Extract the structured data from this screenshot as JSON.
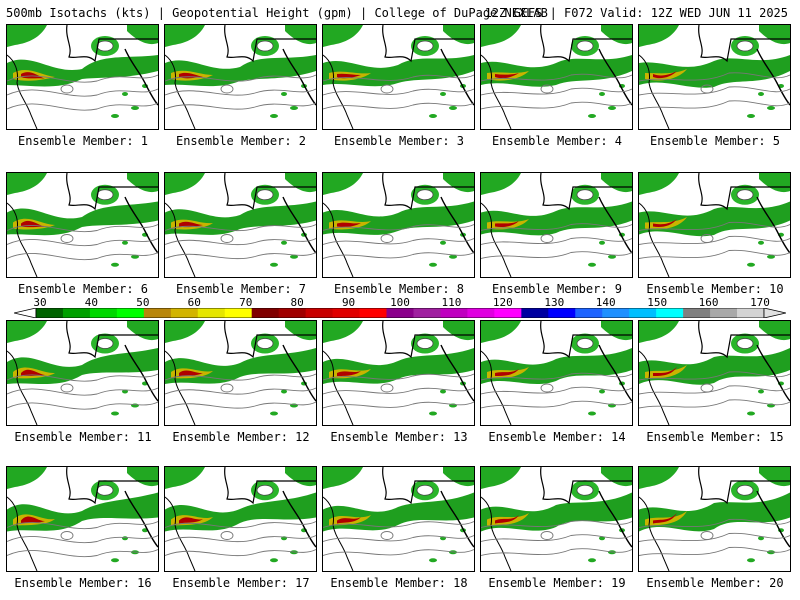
{
  "header": {
    "title_left": "500mb Isotachs (kts) | Geopotential Height (gpm) | College of DuPage NEXLAB",
    "title_right": "12Z GEFS | F072 Valid: 12Z WED JUN 11 2025"
  },
  "panels": [
    {
      "label": "Ensemble Member: 1"
    },
    {
      "label": "Ensemble Member: 2"
    },
    {
      "label": "Ensemble Member: 3"
    },
    {
      "label": "Ensemble Member: 4"
    },
    {
      "label": "Ensemble Member: 5"
    },
    {
      "label": "Ensemble Member: 6"
    },
    {
      "label": "Ensemble Member: 7"
    },
    {
      "label": "Ensemble Member: 8"
    },
    {
      "label": "Ensemble Member: 9"
    },
    {
      "label": "Ensemble Member: 10"
    },
    {
      "label": "Ensemble Member: 11"
    },
    {
      "label": "Ensemble Member: 12"
    },
    {
      "label": "Ensemble Member: 13"
    },
    {
      "label": "Ensemble Member: 14"
    },
    {
      "label": "Ensemble Member: 15"
    },
    {
      "label": "Ensemble Member: 16"
    },
    {
      "label": "Ensemble Member: 17"
    },
    {
      "label": "Ensemble Member: 18"
    },
    {
      "label": "Ensemble Member: 19"
    },
    {
      "label": "Ensemble Member: 20"
    }
  ],
  "colorbar": {
    "tick_labels": [
      "30",
      "40",
      "50",
      "60",
      "70",
      "80",
      "90",
      "100",
      "110",
      "120",
      "130",
      "140",
      "150",
      "160",
      "170"
    ],
    "colors": [
      "#006400",
      "#00a000",
      "#00d800",
      "#00ff00",
      "#b8860b",
      "#d2b400",
      "#e6e600",
      "#ffff00",
      "#800000",
      "#a00000",
      "#c80000",
      "#e00000",
      "#ff0000",
      "#8b008b",
      "#a020a0",
      "#c000c0",
      "#e000e0",
      "#ff00ff",
      "#0000a0",
      "#0000ff",
      "#1e64ff",
      "#1e90ff",
      "#00bfff",
      "#00ffff",
      "#808080",
      "#a9a9a9",
      "#d3d3d3"
    ]
  }
}
